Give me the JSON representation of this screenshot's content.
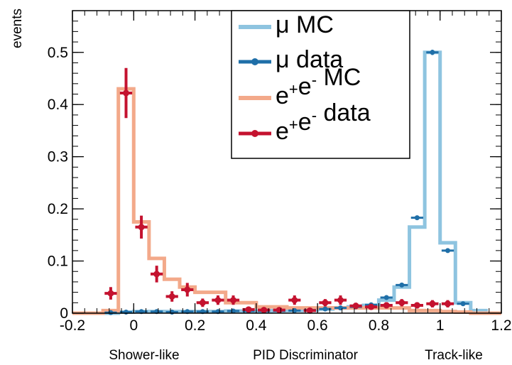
{
  "chart_data": {
    "type": "line",
    "title": "",
    "xlabel": "PID Discriminator",
    "ylabel": "events",
    "x_annotations": {
      "left": "Shower-like",
      "right": "Track-like"
    },
    "xlim": [
      -0.2,
      1.2
    ],
    "ylim": [
      0,
      0.58
    ],
    "x_ticks": [
      -0.2,
      0,
      0.2,
      0.4,
      0.6,
      0.8,
      1,
      1.2
    ],
    "x_tick_labels": [
      "-0.2",
      "0",
      "0.2",
      "0.4",
      "0.6",
      "0.8",
      "1",
      "1.2"
    ],
    "y_ticks": [
      0,
      0.1,
      0.2,
      0.3,
      0.4,
      0.5
    ],
    "y_tick_labels": [
      "0",
      "0.1",
      "0.2",
      "0.3",
      "0.4",
      "0.5"
    ],
    "bin_width": 0.05,
    "grid": false,
    "legend_position": "top-center",
    "legend": [
      {
        "prefix": "μ",
        "main": " MC",
        "kind": "hist",
        "color": "#8ec4e0"
      },
      {
        "prefix": "μ",
        "main": " data",
        "kind": "points",
        "color": "#1f6fa8"
      },
      {
        "prefix": "e",
        "sup1": "+",
        "mid": "e",
        "sup2": "-",
        "main": " MC",
        "kind": "hist",
        "color": "#f3a98a"
      },
      {
        "prefix": "e",
        "sup1": "+",
        "mid": "e",
        "sup2": "-",
        "main": " data",
        "kind": "points",
        "color": "#c4122f"
      }
    ],
    "series": [
      {
        "name": "μ MC",
        "kind": "hist",
        "color": "#8ec4e0",
        "bin_centers": [
          -0.175,
          -0.125,
          -0.075,
          -0.025,
          0.025,
          0.075,
          0.125,
          0.175,
          0.225,
          0.275,
          0.325,
          0.375,
          0.425,
          0.475,
          0.525,
          0.575,
          0.625,
          0.675,
          0.725,
          0.775,
          0.825,
          0.875,
          0.925,
          0.975,
          1.025,
          1.075,
          1.125,
          1.175
        ],
        "values": [
          0,
          0,
          0,
          0.002,
          0.003,
          0.003,
          0.003,
          0.003,
          0.003,
          0.003,
          0.004,
          0.004,
          0.004,
          0.005,
          0.005,
          0.006,
          0.008,
          0.01,
          0.012,
          0.015,
          0.025,
          0.05,
          0.165,
          0.5,
          0.135,
          0.02,
          0.005,
          0
        ]
      },
      {
        "name": "μ data",
        "kind": "points",
        "color": "#1f6fa8",
        "x": [
          -0.075,
          -0.025,
          0.025,
          0.075,
          0.125,
          0.175,
          0.225,
          0.275,
          0.325,
          0.375,
          0.425,
          0.475,
          0.525,
          0.575,
          0.625,
          0.675,
          0.725,
          0.775,
          0.825,
          0.875,
          0.925,
          0.975,
          1.025,
          1.075
        ],
        "values": [
          0.001,
          0.002,
          0.003,
          0.003,
          0.002,
          0.003,
          0.003,
          0.003,
          0.004,
          0.004,
          0.004,
          0.004,
          0.005,
          0.006,
          0.008,
          0.01,
          0.012,
          0.016,
          0.03,
          0.054,
          0.183,
          0.5,
          0.12,
          0.018
        ],
        "errors": [
          0,
          0,
          0,
          0,
          0,
          0,
          0,
          0,
          0,
          0,
          0,
          0,
          0,
          0,
          0,
          0,
          0,
          0,
          0.002,
          0.003,
          0.004,
          0.005,
          0.004,
          0.002
        ]
      },
      {
        "name": "e+e- MC",
        "kind": "hist",
        "color": "#f3a98a",
        "bin_centers": [
          -0.175,
          -0.125,
          -0.075,
          -0.025,
          0.025,
          0.075,
          0.125,
          0.175,
          0.225,
          0.275,
          0.325,
          0.375,
          0.425,
          0.475,
          0.525,
          0.575,
          0.625,
          0.675,
          0.725,
          0.775,
          0.825,
          0.875,
          0.925,
          0.975,
          1.025,
          1.075,
          1.125,
          1.175
        ],
        "values": [
          0,
          0,
          0.005,
          0.43,
          0.175,
          0.105,
          0.065,
          0.05,
          0.04,
          0.04,
          0.02,
          0.02,
          0.012,
          0.012,
          0.01,
          0.01,
          0.01,
          0.01,
          0.01,
          0.01,
          0.01,
          0.01,
          0.005,
          0.005,
          0.003,
          0.002,
          0,
          0
        ]
      },
      {
        "name": "e+e- data",
        "kind": "points",
        "color": "#c4122f",
        "x": [
          -0.075,
          -0.025,
          0.025,
          0.075,
          0.125,
          0.175,
          0.225,
          0.275,
          0.325,
          0.375,
          0.425,
          0.475,
          0.525,
          0.575,
          0.625,
          0.675,
          0.725,
          0.775,
          0.825,
          0.875,
          0.925,
          0.975,
          1.025
        ],
        "values": [
          0.038,
          0.422,
          0.165,
          0.075,
          0.032,
          0.045,
          0.02,
          0.025,
          0.025,
          0.007,
          0.006,
          0.006,
          0.025,
          0.005,
          0.02,
          0.025,
          0.014,
          0.012,
          0.015,
          0.02,
          0.015,
          0.018,
          0.018
        ],
        "errors": [
          0.012,
          0.048,
          0.022,
          0.016,
          0.01,
          0.013,
          0.008,
          0.009,
          0.009,
          0.004,
          0.004,
          0.004,
          0.009,
          0.003,
          0.007,
          0.009,
          0.006,
          0.005,
          0.006,
          0.007,
          0.006,
          0.007,
          0.007
        ]
      }
    ]
  }
}
